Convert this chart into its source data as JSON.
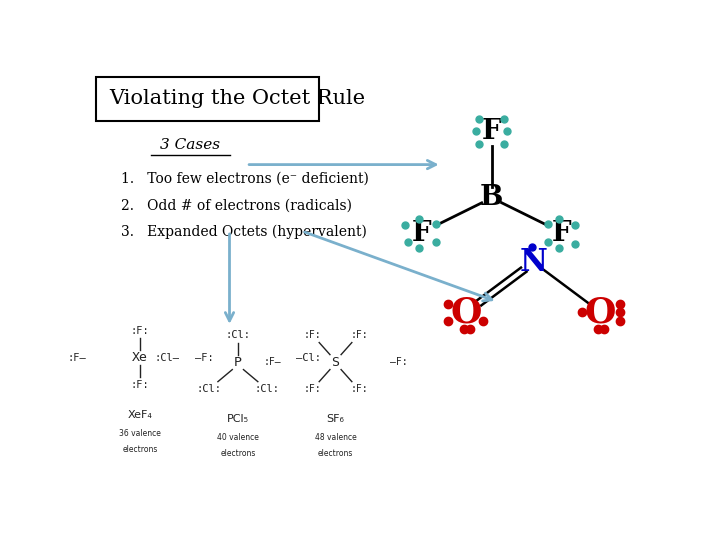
{
  "title": "Violating the Octet Rule",
  "background": "#ffffff",
  "teal": "#3aada0",
  "arrow_color": "#7ab0cc",
  "black": "#000000",
  "red": "#cc0000",
  "blue_dark": "#0000cc",
  "cases_header": "3 Cases",
  "cases_list": [
    "Too few electrons (e⁻ deficient)",
    "Odd # of electrons (radicals)",
    "Expanded Octets (hypervalent)"
  ]
}
